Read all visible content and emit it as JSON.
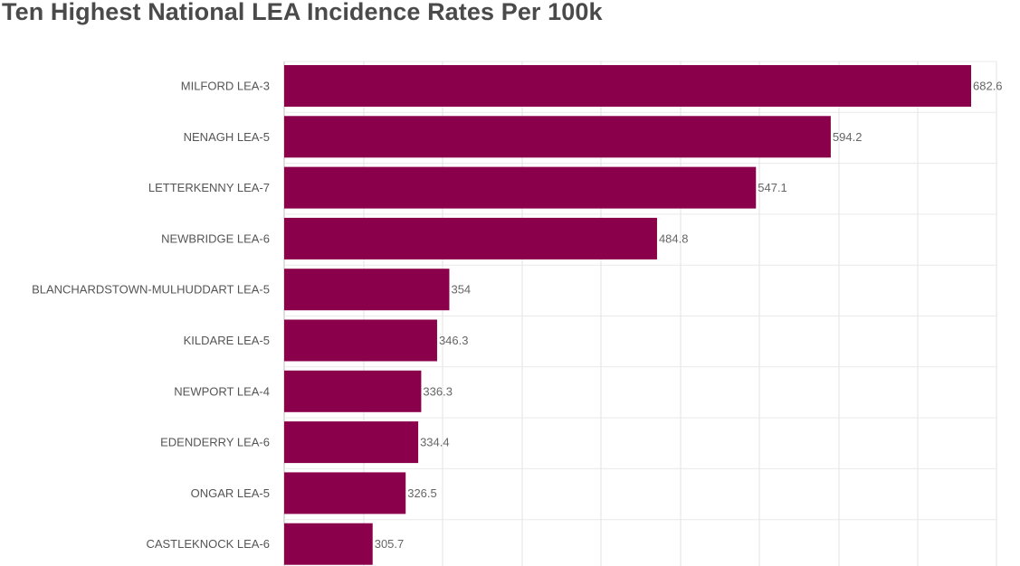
{
  "colors": {
    "bar": "#8b004b",
    "title": "#4a4a4a"
  },
  "chart_data": {
    "type": "bar",
    "orientation": "horizontal",
    "title": "Ten Highest National LEA Incidence Rates Per 100k",
    "categories": [
      "MILFORD LEA-3",
      "NENAGH LEA-5",
      "LETTERKENNY LEA-7",
      "NEWBRIDGE LEA-6",
      "BLANCHARDSTOWN-MULHUDDART LEA-5",
      "KILDARE LEA-5",
      "NEWPORT LEA-4",
      "EDENDERRY LEA-6",
      "ONGAR LEA-5",
      "CASTLEKNOCK LEA-6"
    ],
    "values": [
      682.6,
      594.2,
      547.1,
      484.8,
      354,
      346.3,
      336.3,
      334.4,
      326.5,
      305.7
    ],
    "value_labels": [
      "682.6",
      "594.2",
      "547.1",
      "484.8",
      "354",
      "346.3",
      "336.3",
      "334.4",
      "326.5",
      "305.7"
    ],
    "xlim": [
      250,
      700
    ],
    "grid": true,
    "legend": "none"
  }
}
